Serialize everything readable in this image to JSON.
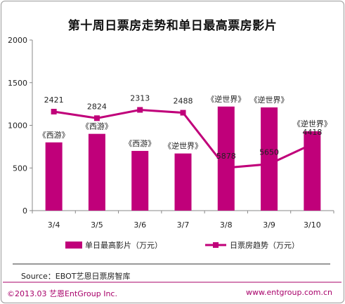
{
  "chart_data": {
    "type": "bar",
    "title": "第十周日票房走势和单日最高票房影片",
    "categories": [
      "3/4",
      "3/5",
      "3/6",
      "3/7",
      "3/8",
      "3/9",
      "3/10"
    ],
    "ylim": [
      0,
      2000
    ],
    "yticks": [
      0,
      500,
      1000,
      1500,
      2000
    ],
    "series": [
      {
        "name": "单日最高影片（万元）",
        "kind": "bar",
        "values": [
          800,
          900,
          700,
          670,
          1220,
          1210,
          930
        ],
        "labels": [
          "《西游》",
          "《西游》",
          "《西游》",
          "《逆世界》",
          "《逆世界》",
          "《逆世界》",
          "《逆世界》"
        ]
      },
      {
        "name": "日票房趋势（万元）",
        "kind": "line",
        "values": [
          2421,
          2824,
          2313,
          2488,
          5878,
          5650,
          4418
        ]
      }
    ],
    "line_scale_note": "",
    "bar_color": "#c0007a",
    "line_color": "#c0007a",
    "legend_position": "bottom",
    "grid": false
  },
  "source": "Source：EBOT艺恩日票房智库",
  "footer": {
    "copyright": "©2013.03 艺恩EntGroup Inc.",
    "website": "www.entgroup.com.cn"
  }
}
